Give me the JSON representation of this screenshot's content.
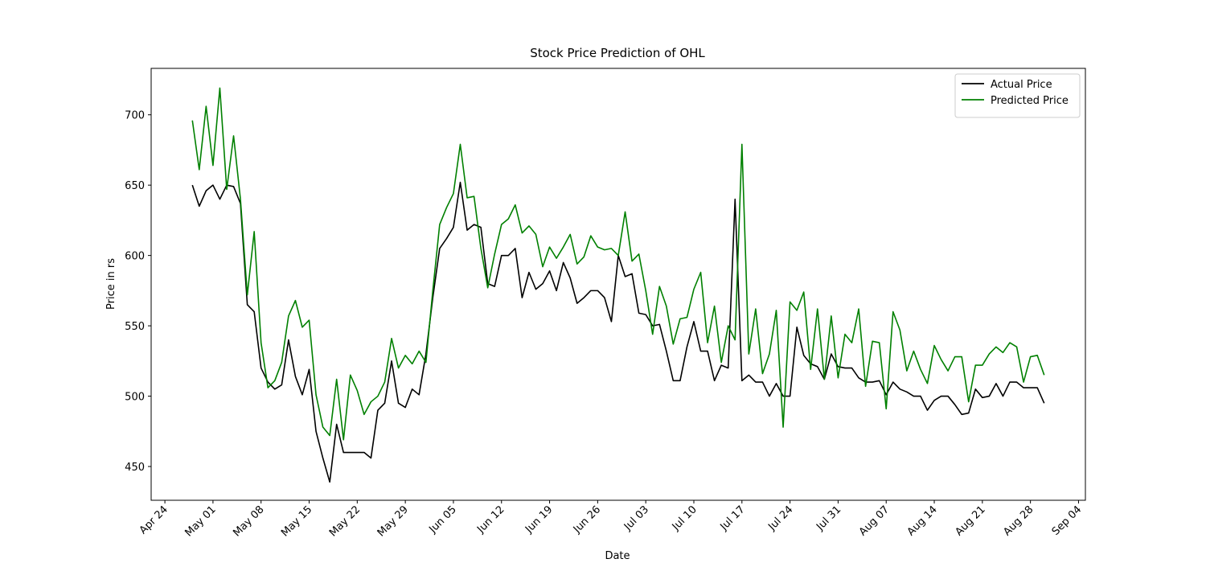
{
  "chart_data": {
    "type": "line",
    "title": "Stock Price Prediction of OHL",
    "x_label": "Date",
    "y_label": "Price in rs",
    "x": [
      "Apr 28",
      "Apr 29",
      "Apr 30",
      "May 01",
      "May 02",
      "May 03",
      "May 04",
      "May 05",
      "May 06",
      "May 07",
      "May 08",
      "May 09",
      "May 10",
      "May 11",
      "May 12",
      "May 13",
      "May 14",
      "May 15",
      "May 16",
      "May 17",
      "May 18",
      "May 19",
      "May 20",
      "May 21",
      "May 22",
      "May 23",
      "May 24",
      "May 25",
      "May 26",
      "May 27",
      "May 28",
      "May 29",
      "May 30",
      "May 31",
      "Jun 01",
      "Jun 02",
      "Jun 03",
      "Jun 04",
      "Jun 05",
      "Jun 06",
      "Jun 07",
      "Jun 08",
      "Jun 09",
      "Jun 10",
      "Jun 11",
      "Jun 12",
      "Jun 13",
      "Jun 14",
      "Jun 15",
      "Jun 16",
      "Jun 17",
      "Jun 18",
      "Jun 19",
      "Jun 20",
      "Jun 21",
      "Jun 22",
      "Jun 23",
      "Jun 24",
      "Jun 25",
      "Jun 26",
      "Jun 27",
      "Jun 28",
      "Jun 29",
      "Jun 30",
      "Jul 01",
      "Jul 02",
      "Jul 03",
      "Jul 04",
      "Jul 05",
      "Jul 06",
      "Jul 07",
      "Jul 08",
      "Jul 09",
      "Jul 10",
      "Jul 11",
      "Jul 12",
      "Jul 13",
      "Jul 14",
      "Jul 15",
      "Jul 16",
      "Jul 17",
      "Jul 18",
      "Jul 19",
      "Jul 20",
      "Jul 21",
      "Jul 22",
      "Jul 23",
      "Jul 24",
      "Jul 25",
      "Jul 26",
      "Jul 27",
      "Jul 28",
      "Jul 29",
      "Jul 30",
      "Jul 31",
      "Aug 01",
      "Aug 02",
      "Aug 03",
      "Aug 04",
      "Aug 05",
      "Aug 06",
      "Aug 07",
      "Aug 08",
      "Aug 09",
      "Aug 10",
      "Aug 11",
      "Aug 12",
      "Aug 13",
      "Aug 14",
      "Aug 15",
      "Aug 16",
      "Aug 17",
      "Aug 18",
      "Aug 19",
      "Aug 20",
      "Aug 21",
      "Aug 22",
      "Aug 23",
      "Aug 24",
      "Aug 25",
      "Aug 26",
      "Aug 27",
      "Aug 28",
      "Aug 29",
      "Aug 30"
    ],
    "series": [
      {
        "name": "Actual Price",
        "color": "#000000",
        "values": [
          650,
          635,
          646,
          650,
          640,
          650,
          649,
          637,
          565,
          560,
          520,
          510,
          505,
          508,
          540,
          514,
          501,
          519,
          475,
          456,
          439,
          480,
          460,
          460,
          460,
          460,
          456,
          490,
          495,
          525,
          495,
          492,
          505,
          501,
          530,
          570,
          605,
          612,
          620,
          652,
          618,
          622,
          620,
          580,
          578,
          600,
          600,
          605,
          570,
          588,
          576,
          580,
          589,
          575,
          595,
          584,
          566,
          570,
          575,
          575,
          570,
          553,
          600,
          585,
          587,
          559,
          558,
          550,
          551,
          532,
          511,
          511,
          535,
          553,
          532,
          532,
          511,
          522,
          520,
          640,
          511,
          515,
          510,
          510,
          500,
          509,
          500,
          500,
          549,
          529,
          523,
          521,
          512,
          530,
          521,
          520,
          520,
          513,
          510,
          510,
          511,
          501,
          510,
          505,
          503,
          500,
          500,
          490,
          497,
          500,
          500,
          494,
          487,
          488,
          505,
          499,
          500,
          509,
          500,
          510,
          510,
          506,
          506,
          506,
          495
        ]
      },
      {
        "name": "Predicted Price",
        "color": "#008000",
        "values": [
          696,
          661,
          706,
          664,
          719,
          647,
          685,
          640,
          572,
          617,
          538,
          506,
          511,
          524,
          557,
          568,
          549,
          554,
          501,
          478,
          472,
          512,
          469,
          515,
          504,
          487,
          496,
          500,
          510,
          541,
          520,
          529,
          523,
          532,
          524,
          575,
          622,
          634,
          644,
          679,
          641,
          642,
          605,
          577,
          601,
          622,
          626,
          636,
          616,
          621,
          615,
          592,
          606,
          598,
          606,
          615,
          594,
          599,
          614,
          606,
          604,
          605,
          600,
          631,
          596,
          601,
          575,
          544,
          578,
          564,
          537,
          555,
          556,
          576,
          588,
          538,
          564,
          524,
          550,
          540,
          679,
          530,
          562,
          516,
          530,
          561,
          478,
          567,
          561,
          574,
          519,
          562,
          512,
          557,
          513,
          544,
          538,
          562,
          507,
          539,
          538,
          491,
          560,
          547,
          518,
          532,
          519,
          509,
          536,
          526,
          518,
          528,
          528,
          496,
          522,
          522,
          530,
          535,
          531,
          538,
          535,
          510,
          528,
          529,
          515
        ]
      }
    ],
    "xlim": [
      "Apr 22",
      "Sep 05"
    ],
    "xticks": [
      "Apr 24",
      "May 01",
      "May 08",
      "May 15",
      "May 22",
      "May 29",
      "Jun 05",
      "Jun 12",
      "Jun 19",
      "Jun 26",
      "Jul 03",
      "Jul 10",
      "Jul 17",
      "Jul 24",
      "Jul 31",
      "Aug 07",
      "Aug 14",
      "Aug 21",
      "Aug 28",
      "Sep 04"
    ],
    "ylim": [
      426,
      733
    ],
    "yticks": [
      450,
      500,
      550,
      600,
      650,
      700
    ],
    "legend": "upper right",
    "grid": false
  }
}
